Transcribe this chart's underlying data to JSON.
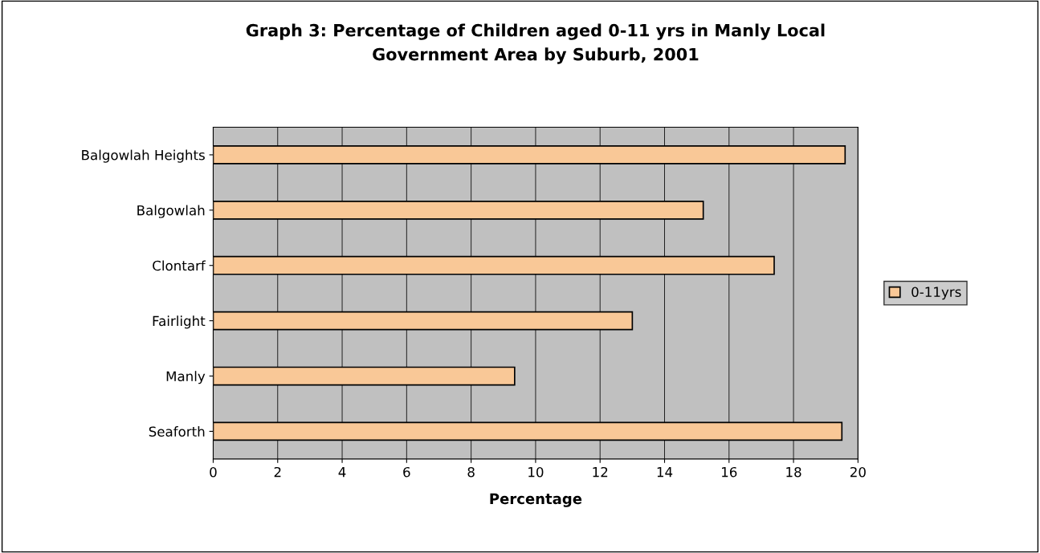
{
  "chart_data": {
    "type": "bar",
    "orientation": "horizontal",
    "title": "Graph 3: Percentage of Children aged 0-11 yrs in Manly Local\nGovernment Area by Suburb, 2001",
    "xlabel": "Percentage",
    "categories": [
      "Balgowlah Heights",
      "Balgowlah",
      "Clontarf",
      "Fairlight",
      "Manly",
      "Seaforth"
    ],
    "series": [
      {
        "name": "0-11yrs",
        "color": "#f9c897",
        "values": [
          19.6,
          15.2,
          17.4,
          13.0,
          9.35,
          19.5
        ]
      }
    ],
    "xlim": [
      0,
      20
    ],
    "xticks": [
      0,
      2,
      4,
      6,
      8,
      10,
      12,
      14,
      16,
      18,
      20
    ],
    "grid": "x",
    "legend": "right"
  }
}
